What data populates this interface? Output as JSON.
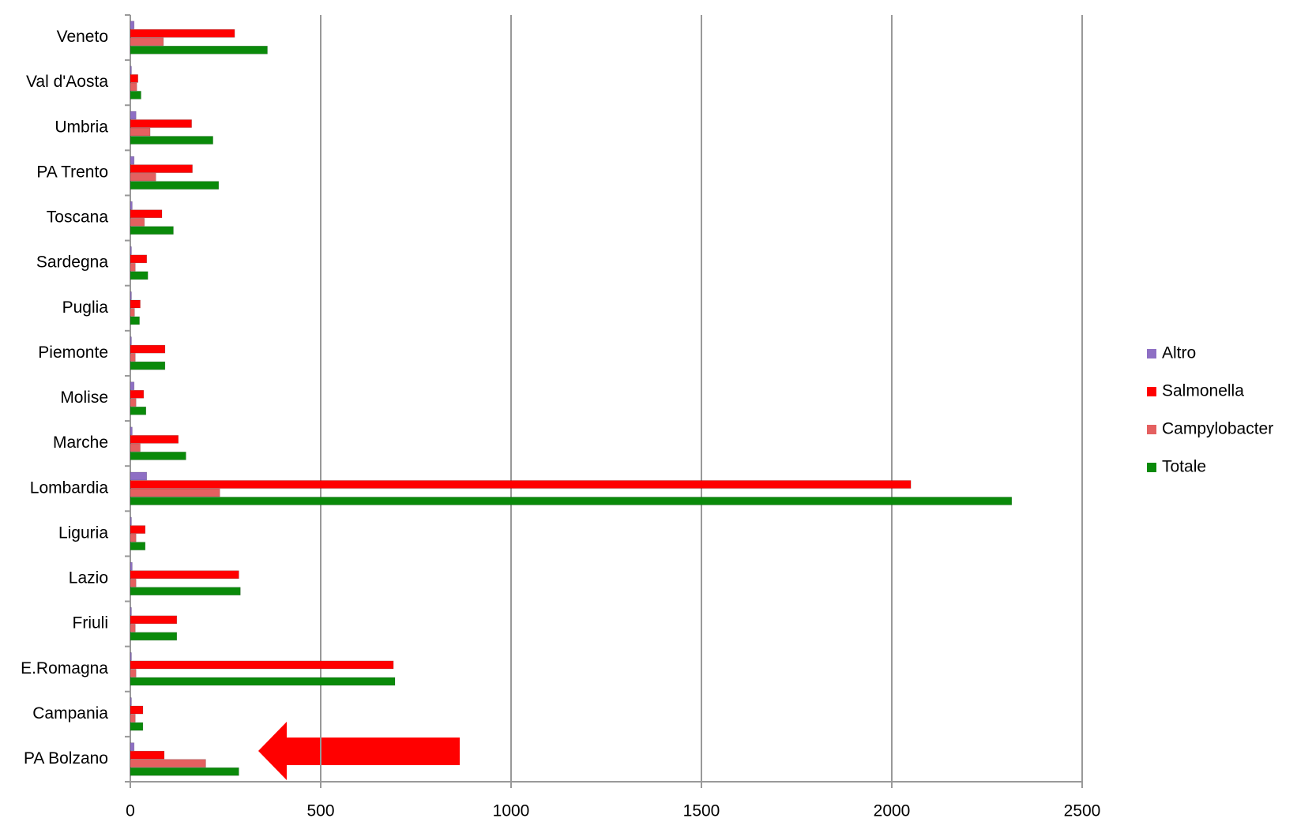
{
  "chart_data": {
    "type": "bar",
    "orientation": "horizontal",
    "categories": [
      "Veneto",
      "Val d'Aosta",
      "Umbria",
      "PA Trento",
      "Toscana",
      "Sardegna",
      "Puglia",
      "Piemonte",
      "Molise",
      "Marche",
      "Lombardia",
      "Liguria",
      "Lazio",
      "Friuli",
      "E.Romagna",
      "Campania",
      "PA Bolzano"
    ],
    "series": [
      {
        "name": "Altro",
        "color": "#8e6fc4",
        "values": [
          10,
          3,
          15,
          10,
          5,
          3,
          3,
          3,
          10,
          5,
          43,
          3,
          5,
          3,
          3,
          3,
          10
        ]
      },
      {
        "name": "Salmonella",
        "color": "#ff0000",
        "values": [
          274,
          20,
          161,
          163,
          83,
          43,
          26,
          91,
          35,
          126,
          2050,
          39,
          285,
          122,
          691,
          33,
          89
        ]
      },
      {
        "name": "Campylobacter",
        "color": "#e46060",
        "values": [
          87,
          17,
          52,
          67,
          37,
          13,
          11,
          13,
          15,
          26,
          235,
          15,
          15,
          13,
          15,
          13,
          198
        ]
      },
      {
        "name": "Totale",
        "color": "#0a8a0a",
        "values": [
          360,
          28,
          217,
          232,
          113,
          46,
          24,
          91,
          41,
          146,
          2315,
          39,
          289,
          122,
          695,
          33,
          285
        ]
      }
    ],
    "xlim": [
      0,
      2500
    ],
    "xticks": [
      0,
      500,
      1000,
      1500,
      2000,
      2500
    ],
    "grid": true,
    "legend": "right"
  }
}
